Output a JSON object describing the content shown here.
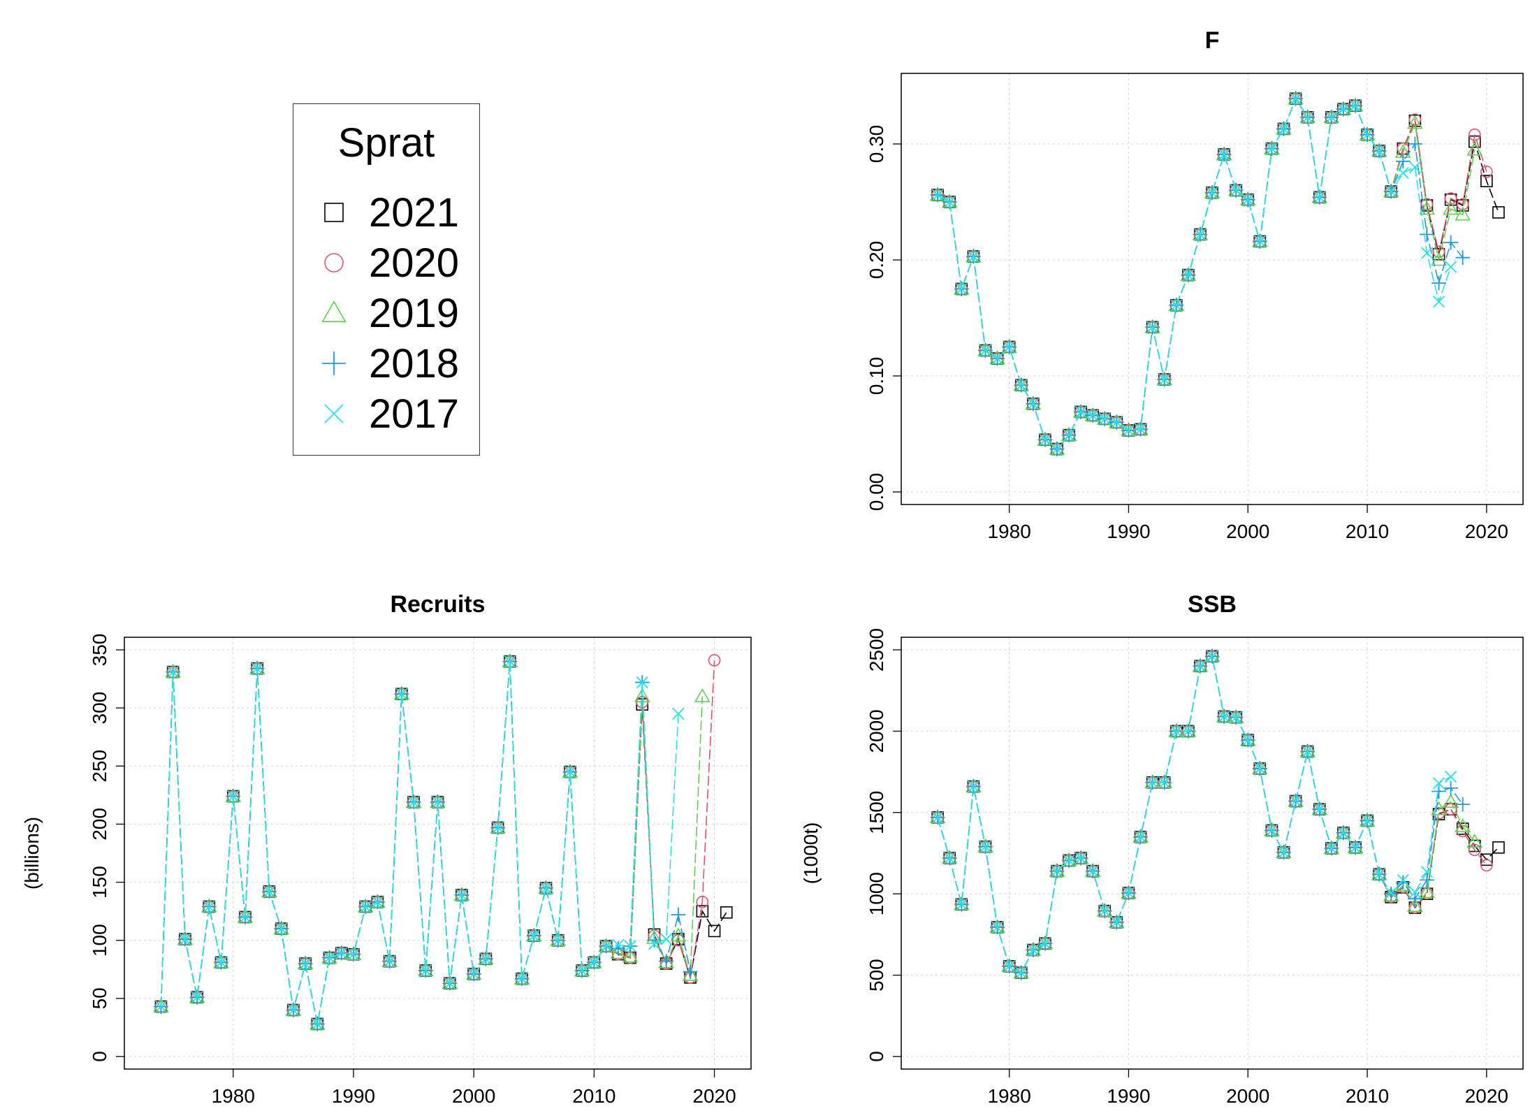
{
  "legend": {
    "title": "Sprat",
    "items": [
      {
        "label": "2021",
        "color": "#000000",
        "symbol": "square"
      },
      {
        "label": "2020",
        "color": "#DF536B",
        "symbol": "circle"
      },
      {
        "label": "2019",
        "color": "#61D04F",
        "symbol": "triangle"
      },
      {
        "label": "2018",
        "color": "#2297E6",
        "symbol": "plus"
      },
      {
        "label": "2017",
        "color": "#28E2E5",
        "symbol": "cross"
      }
    ]
  },
  "chart_data": [
    {
      "id": "F",
      "type": "line",
      "title": "F",
      "xlabel": "",
      "ylabel": "",
      "xlim": [
        1972,
        2022
      ],
      "ylim": [
        0,
        0.35
      ],
      "xticks": [
        1980,
        1990,
        2000,
        2010,
        2020
      ],
      "yticks": [
        0,
        0.1,
        0.2,
        0.3
      ],
      "ytick_labels": [
        "0.00",
        "0.10",
        "0.20",
        "0.30"
      ],
      "grid": true,
      "base": {
        "start": 1974,
        "values": [
          0.256,
          0.25,
          0.175,
          0.203,
          0.122,
          0.115,
          0.125,
          0.092,
          0.076,
          0.045,
          0.037,
          0.049,
          0.069,
          0.066,
          0.063,
          0.06,
          0.053,
          0.054,
          0.142,
          0.097,
          0.161,
          0.187,
          0.222,
          0.258,
          0.291,
          0.26,
          0.252,
          0.216,
          0.296,
          0.313,
          0.339,
          0.323,
          0.254,
          0.323,
          0.33,
          0.333,
          0.308,
          0.294,
          0.259
        ]
      },
      "series": [
        {
          "name": "2021",
          "tail": {
            "start": 2013,
            "values": [
              0.296,
              0.32,
              0.247,
              0.205,
              0.252,
              0.247,
              0.302,
              0.268,
              0.241
            ]
          }
        },
        {
          "name": "2020",
          "tail": {
            "start": 2013,
            "values": [
              0.296,
              0.321,
              0.248,
              0.207,
              0.253,
              0.248,
              0.308,
              0.276
            ]
          }
        },
        {
          "name": "2019",
          "tail": {
            "start": 2013,
            "values": [
              0.293,
              0.318,
              0.244,
              0.2,
              0.244,
              0.239,
              0.295
            ]
          }
        },
        {
          "name": "2018",
          "tail": {
            "start": 2013,
            "values": [
              0.285,
              0.3,
              0.222,
              0.18,
              0.215,
              0.202
            ]
          }
        },
        {
          "name": "2017",
          "tail": {
            "start": 2013,
            "values": [
              0.275,
              0.28,
              0.206,
              0.164,
              0.194
            ]
          }
        }
      ]
    },
    {
      "id": "Recruits",
      "type": "line",
      "title": "Recruits",
      "xlabel": "",
      "ylabel": "(billions)",
      "xlim": [
        1972,
        2022
      ],
      "ylim": [
        0,
        350
      ],
      "xticks": [
        1980,
        1990,
        2000,
        2010,
        2020
      ],
      "yticks": [
        0,
        50,
        100,
        150,
        200,
        250,
        300,
        350
      ],
      "ytick_labels": [
        "0",
        "50",
        "100",
        "150",
        "200",
        "250",
        "300",
        "350"
      ],
      "grid": true,
      "base": {
        "start": 1974,
        "values": [
          43,
          331,
          101,
          51,
          129,
          81,
          224,
          120,
          334,
          142,
          110,
          40,
          80,
          28,
          85,
          89,
          88,
          129,
          133,
          82,
          312,
          219,
          74,
          219,
          63,
          139,
          71,
          84,
          197,
          340,
          67,
          104,
          145,
          100,
          245,
          74,
          81,
          95
        ]
      },
      "series": [
        {
          "name": "2021",
          "tail": {
            "start": 2012,
            "values": [
              88,
              85,
              303,
              105,
              80,
              101,
              68,
              125,
              108,
              124
            ]
          }
        },
        {
          "name": "2020",
          "tail": {
            "start": 2012,
            "values": [
              88,
              85,
              305,
              104,
              80,
              100,
              68,
              133,
              341
            ]
          }
        },
        {
          "name": "2019",
          "tail": {
            "start": 2012,
            "values": [
              89,
              86,
              310,
              102,
              81,
              104,
              70,
              310
            ]
          }
        },
        {
          "name": "2018",
          "tail": {
            "start": 2012,
            "values": [
              93,
              95,
              322,
              100,
              82,
              122,
              73
            ]
          }
        },
        {
          "name": "2017",
          "tail": {
            "start": 2012,
            "values": [
              96,
              95,
              322,
              97,
              101,
              295
            ]
          }
        }
      ]
    },
    {
      "id": "SSB",
      "type": "line",
      "title": "SSB",
      "xlabel": "",
      "ylabel": "(1000t)",
      "xlim": [
        1972,
        2022
      ],
      "ylim": [
        0,
        2500
      ],
      "xticks": [
        1980,
        1990,
        2000,
        2010,
        2020
      ],
      "yticks": [
        0,
        500,
        1000,
        1500,
        2000,
        2500
      ],
      "ytick_labels": [
        "0",
        "500",
        "1000",
        "1500",
        "2000",
        "2500"
      ],
      "grid": true,
      "base": {
        "start": 1974,
        "values": [
          1470,
          1220,
          935,
          1660,
          1290,
          795,
          555,
          515,
          655,
          695,
          1140,
          1205,
          1220,
          1140,
          895,
          825,
          1005,
          1350,
          1685,
          1685,
          2000,
          2000,
          2400,
          2460,
          2090,
          2085,
          1945,
          1770,
          1390,
          1255,
          1570,
          1875,
          1520,
          1280,
          1375,
          1285,
          1450,
          1120
        ]
      },
      "series": [
        {
          "name": "2021",
          "tail": {
            "start": 2012,
            "values": [
              980,
              1040,
              915,
              1000,
              1490,
              1520,
              1400,
              1295,
              1210,
              1285
            ]
          }
        },
        {
          "name": "2020",
          "tail": {
            "start": 2012,
            "values": [
              982,
              1042,
              917,
              1003,
              1495,
              1520,
              1385,
              1270,
              1175
            ]
          }
        },
        {
          "name": "2019",
          "tail": {
            "start": 2012,
            "values": [
              990,
              1050,
              925,
              1010,
              1520,
              1565,
              1415,
              1320
            ]
          }
        },
        {
          "name": "2018",
          "tail": {
            "start": 2012,
            "values": [
              1000,
              1070,
              970,
              1085,
              1630,
              1650,
              1550
            ]
          }
        },
        {
          "name": "2017",
          "tail": {
            "start": 2012,
            "values": [
              1005,
              1085,
              1010,
              1135,
              1680,
              1720
            ]
          }
        }
      ]
    }
  ]
}
